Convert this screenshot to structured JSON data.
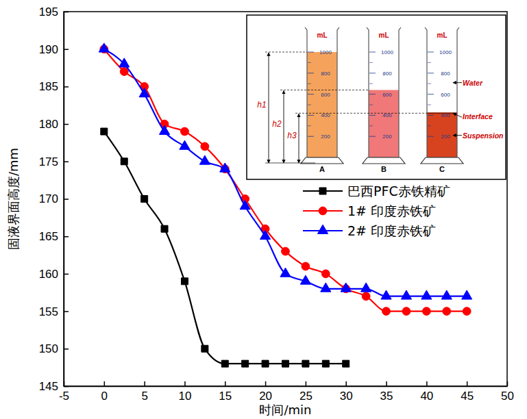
{
  "chart_data": {
    "type": "line",
    "x_label": "时间/min",
    "y_label": "固液界面高度/mm",
    "xlim": [
      -5,
      50
    ],
    "xticks": [
      -5,
      0,
      5,
      10,
      15,
      20,
      25,
      30,
      35,
      40,
      45,
      50
    ],
    "ylim": [
      145,
      195
    ],
    "yticks": [
      145,
      150,
      155,
      160,
      165,
      170,
      175,
      180,
      185,
      190,
      195
    ],
    "legend": "upper right",
    "series": [
      {
        "name": "巴西PFC赤铁精矿",
        "color": "#000000",
        "marker": "square",
        "line_style": "solid",
        "x": [
          0,
          2.5,
          5,
          7.5,
          10,
          12.5,
          15,
          17.5,
          20,
          22.5,
          25,
          27.5,
          30
        ],
        "values": [
          179,
          175,
          170,
          166,
          159,
          150,
          148,
          148,
          148,
          148,
          148,
          148,
          148
        ]
      },
      {
        "name": "1# 印度赤铁矿",
        "color": "#ff0000",
        "marker": "circle",
        "line_style": "solid",
        "x": [
          0,
          2.5,
          5,
          7.5,
          10,
          12.5,
          15,
          17.5,
          20,
          22.5,
          25,
          27.5,
          30,
          32.5,
          35,
          37.5,
          40,
          42.5,
          45
        ],
        "values": [
          190,
          187,
          185,
          180,
          179,
          177,
          174,
          170,
          166,
          163,
          161,
          160,
          158,
          157,
          155,
          155,
          155,
          155,
          155
        ]
      },
      {
        "name": "2# 印度赤铁矿",
        "color": "#0000ff",
        "marker": "triangle",
        "line_style": "solid",
        "x": [
          0,
          2.5,
          5,
          7.5,
          10,
          12.5,
          15,
          17.5,
          20,
          22.5,
          25,
          27.5,
          30,
          32.5,
          35,
          37.5,
          40,
          42.5,
          45
        ],
        "values": [
          190,
          188,
          184,
          179,
          177,
          175,
          174,
          169,
          165,
          160,
          159,
          158,
          158,
          158,
          157,
          157,
          157,
          157,
          157
        ]
      }
    ]
  },
  "inset": {
    "unit": "mL",
    "cylinders": [
      {
        "label": "A",
        "ticks": [
          200,
          400,
          600,
          800,
          1000
        ],
        "level": 1000,
        "color": "#f5a35c"
      },
      {
        "label": "B",
        "ticks": [
          200,
          400,
          600,
          800,
          1000
        ],
        "level": 640,
        "color": "#f07878"
      },
      {
        "label": "C",
        "ticks": [
          200,
          400,
          600,
          800,
          1000
        ],
        "level": 420,
        "color": "#d8431f"
      }
    ],
    "heights": [
      "h1",
      "h2",
      "h3"
    ],
    "annotations": [
      "Water",
      "Interface",
      "Suspension"
    ]
  }
}
